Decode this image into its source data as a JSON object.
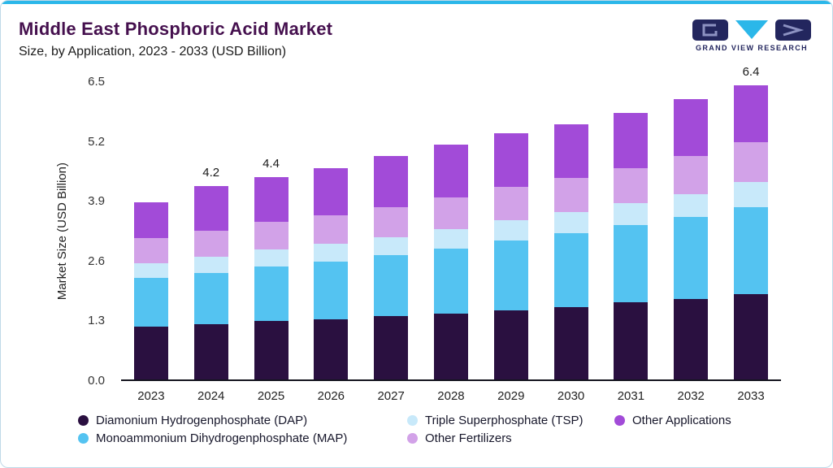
{
  "header": {
    "logo": {
      "text": "GRAND VIEW RESEARCH"
    }
  },
  "brand": {
    "accent_top": "#2bb7e9",
    "border": "#bfd9e8",
    "title_color": "#45104e",
    "logo_navy": "#23265e",
    "logo_cyan": "#2bb7e9"
  },
  "chart_data": {
    "type": "bar",
    "stacked": true,
    "title": "Middle East Phosphoric Acid Market",
    "subtitle": "Size, by Application, 2023 - 2033 (USD Billion)",
    "ylabel": "Market Size (USD Billion)",
    "ylim": [
      0,
      6.5
    ],
    "yticks": [
      "0.0",
      "1.3",
      "2.6",
      "3.9",
      "5.2",
      "6.5"
    ],
    "grid": false,
    "legend_position": "bottom",
    "categories": [
      "2023",
      "2024",
      "2025",
      "2026",
      "2027",
      "2028",
      "2029",
      "2030",
      "2031",
      "2032",
      "2033"
    ],
    "series": [
      {
        "name": "Diamonium Hydrogenphosphate (DAP)",
        "color": "#2a1040",
        "values": [
          1.15,
          1.2,
          1.27,
          1.3,
          1.37,
          1.43,
          1.5,
          1.58,
          1.67,
          1.75,
          1.85
        ]
      },
      {
        "name": "Monoammonium Dihydrogenphosphate (MAP)",
        "color": "#54c3f1",
        "values": [
          1.05,
          1.12,
          1.18,
          1.27,
          1.33,
          1.42,
          1.52,
          1.6,
          1.68,
          1.78,
          1.9
        ]
      },
      {
        "name": "Triple Superphosphate (TSP)",
        "color": "#c8e9fa",
        "values": [
          0.33,
          0.35,
          0.37,
          0.38,
          0.4,
          0.42,
          0.44,
          0.46,
          0.48,
          0.5,
          0.55
        ]
      },
      {
        "name": "Other Fertilizers",
        "color": "#d2a2e8",
        "values": [
          0.55,
          0.57,
          0.6,
          0.62,
          0.65,
          0.68,
          0.72,
          0.74,
          0.77,
          0.82,
          0.85
        ]
      },
      {
        "name": "Other Applications",
        "color": "#a24bd8",
        "values": [
          0.77,
          0.96,
          0.98,
          1.03,
          1.1,
          1.15,
          1.17,
          1.17,
          1.2,
          1.25,
          1.25
        ]
      }
    ],
    "totals": [
      3.85,
      4.2,
      4.4,
      4.6,
      4.85,
      5.1,
      5.35,
      5.55,
      5.8,
      6.1,
      6.4
    ],
    "bar_labels": [
      null,
      "4.2",
      "4.4",
      null,
      null,
      null,
      null,
      null,
      null,
      null,
      "6.4"
    ],
    "legend_rows": [
      [
        0,
        2,
        4
      ],
      [
        1,
        3
      ]
    ]
  }
}
